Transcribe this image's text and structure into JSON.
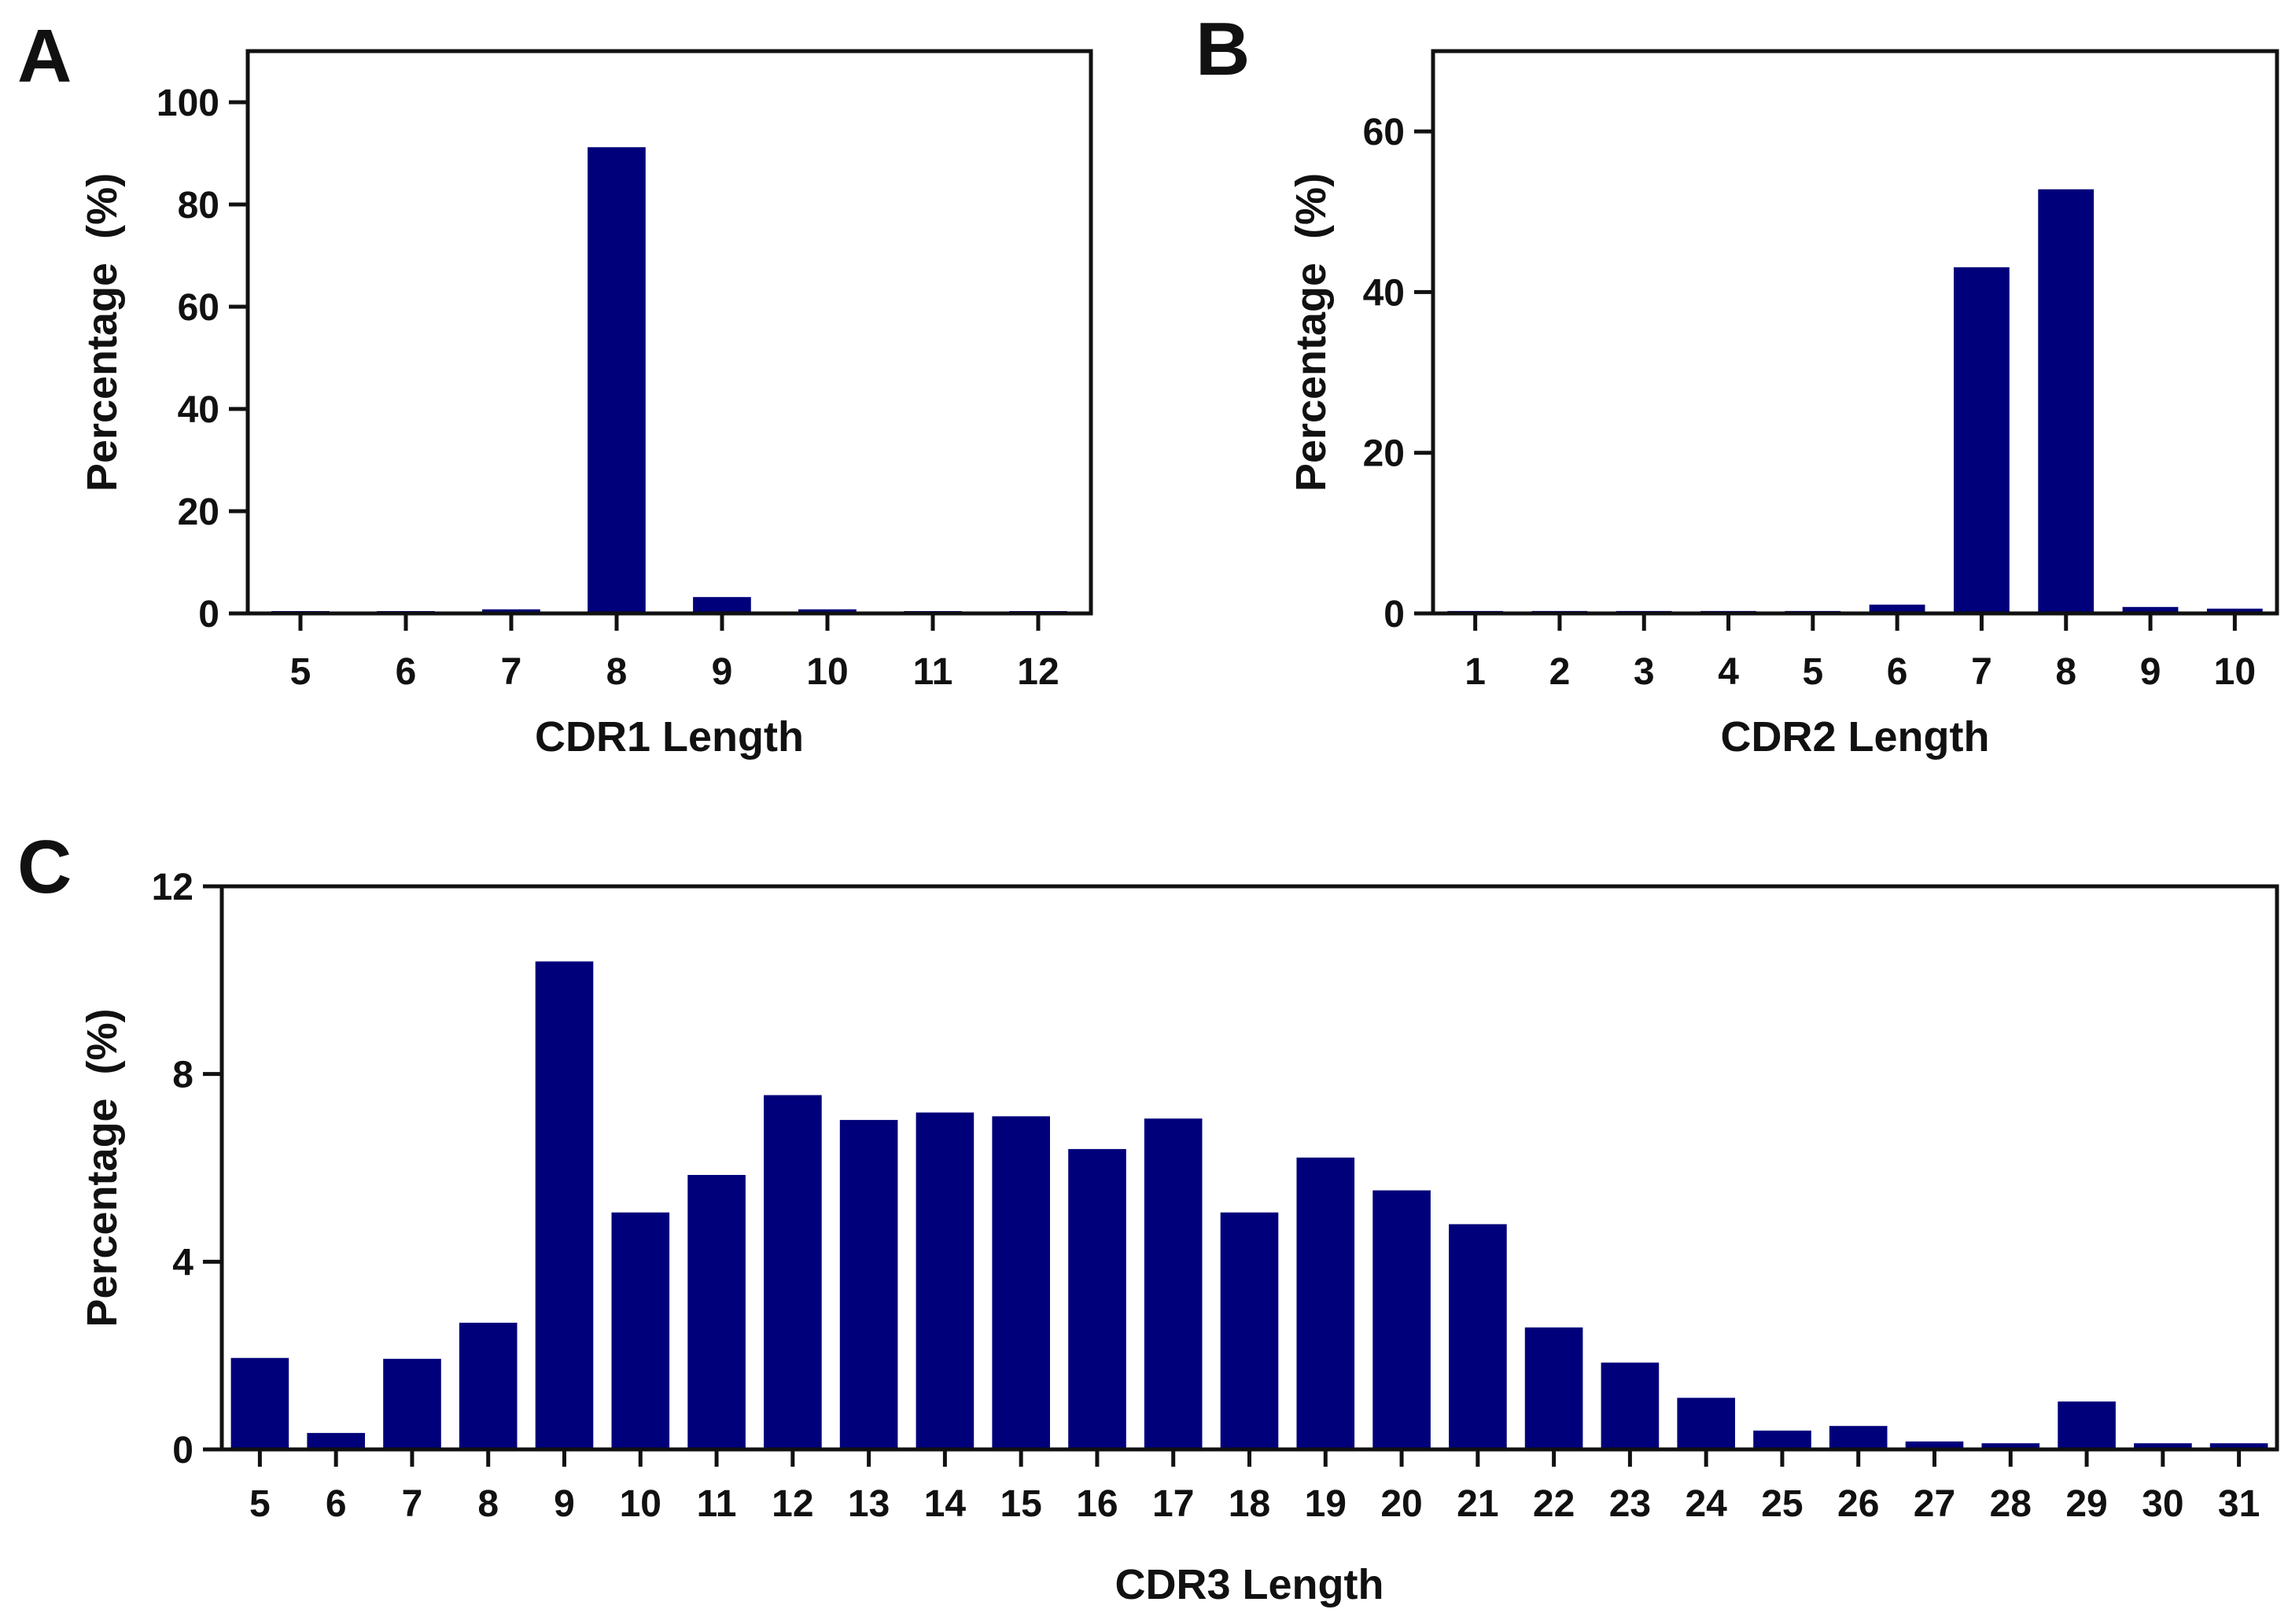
{
  "figure": {
    "bar_color": "#00007a",
    "axis_color": "#111111",
    "background": "#ffffff"
  },
  "chart_data": [
    {
      "panel": "A",
      "type": "bar",
      "categories": [
        "5",
        "6",
        "7",
        "8",
        "9",
        "10",
        "11",
        "12"
      ],
      "values": [
        0.4,
        0.4,
        0.8,
        91.2,
        3.2,
        0.8,
        0.4,
        0.4
      ],
      "xlabel": "CDR1 Length",
      "ylabel": "Percentage  (%)",
      "ylim": [
        0,
        110
      ],
      "yticks": [
        0,
        20,
        40,
        60,
        80,
        100
      ],
      "grid": false,
      "legend": "none"
    },
    {
      "panel": "B",
      "type": "bar",
      "categories": [
        "1",
        "2",
        "3",
        "4",
        "5",
        "6",
        "7",
        "8",
        "9",
        "10"
      ],
      "values": [
        0.3,
        0.3,
        0.3,
        0.3,
        0.3,
        1.1,
        43.1,
        52.8,
        0.8,
        0.6
      ],
      "xlabel": "CDR2 Length",
      "ylabel": "Percentage  (%)",
      "ylim": [
        0,
        70
      ],
      "yticks": [
        0,
        20,
        40,
        60
      ],
      "grid": false,
      "legend": "none"
    },
    {
      "panel": "C",
      "type": "bar",
      "categories": [
        "5",
        "6",
        "7",
        "8",
        "9",
        "10",
        "11",
        "12",
        "13",
        "14",
        "15",
        "16",
        "17",
        "18",
        "19",
        "20",
        "21",
        "22",
        "23",
        "24",
        "25",
        "26",
        "27",
        "28",
        "29",
        "30",
        "31"
      ],
      "values": [
        1.95,
        0.35,
        1.93,
        2.7,
        10.4,
        5.05,
        5.85,
        7.55,
        7.02,
        7.18,
        7.1,
        6.4,
        7.05,
        5.05,
        6.22,
        5.52,
        4.8,
        2.6,
        1.85,
        1.1,
        0.4,
        0.5,
        0.17,
        0.13,
        1.02,
        0.13,
        0.13
      ],
      "xlabel": "CDR3 Length",
      "ylabel": "Percentage  (%)",
      "ylim": [
        0,
        12
      ],
      "yticks": [
        0,
        4,
        8,
        12
      ],
      "grid": false,
      "legend": "none"
    }
  ]
}
